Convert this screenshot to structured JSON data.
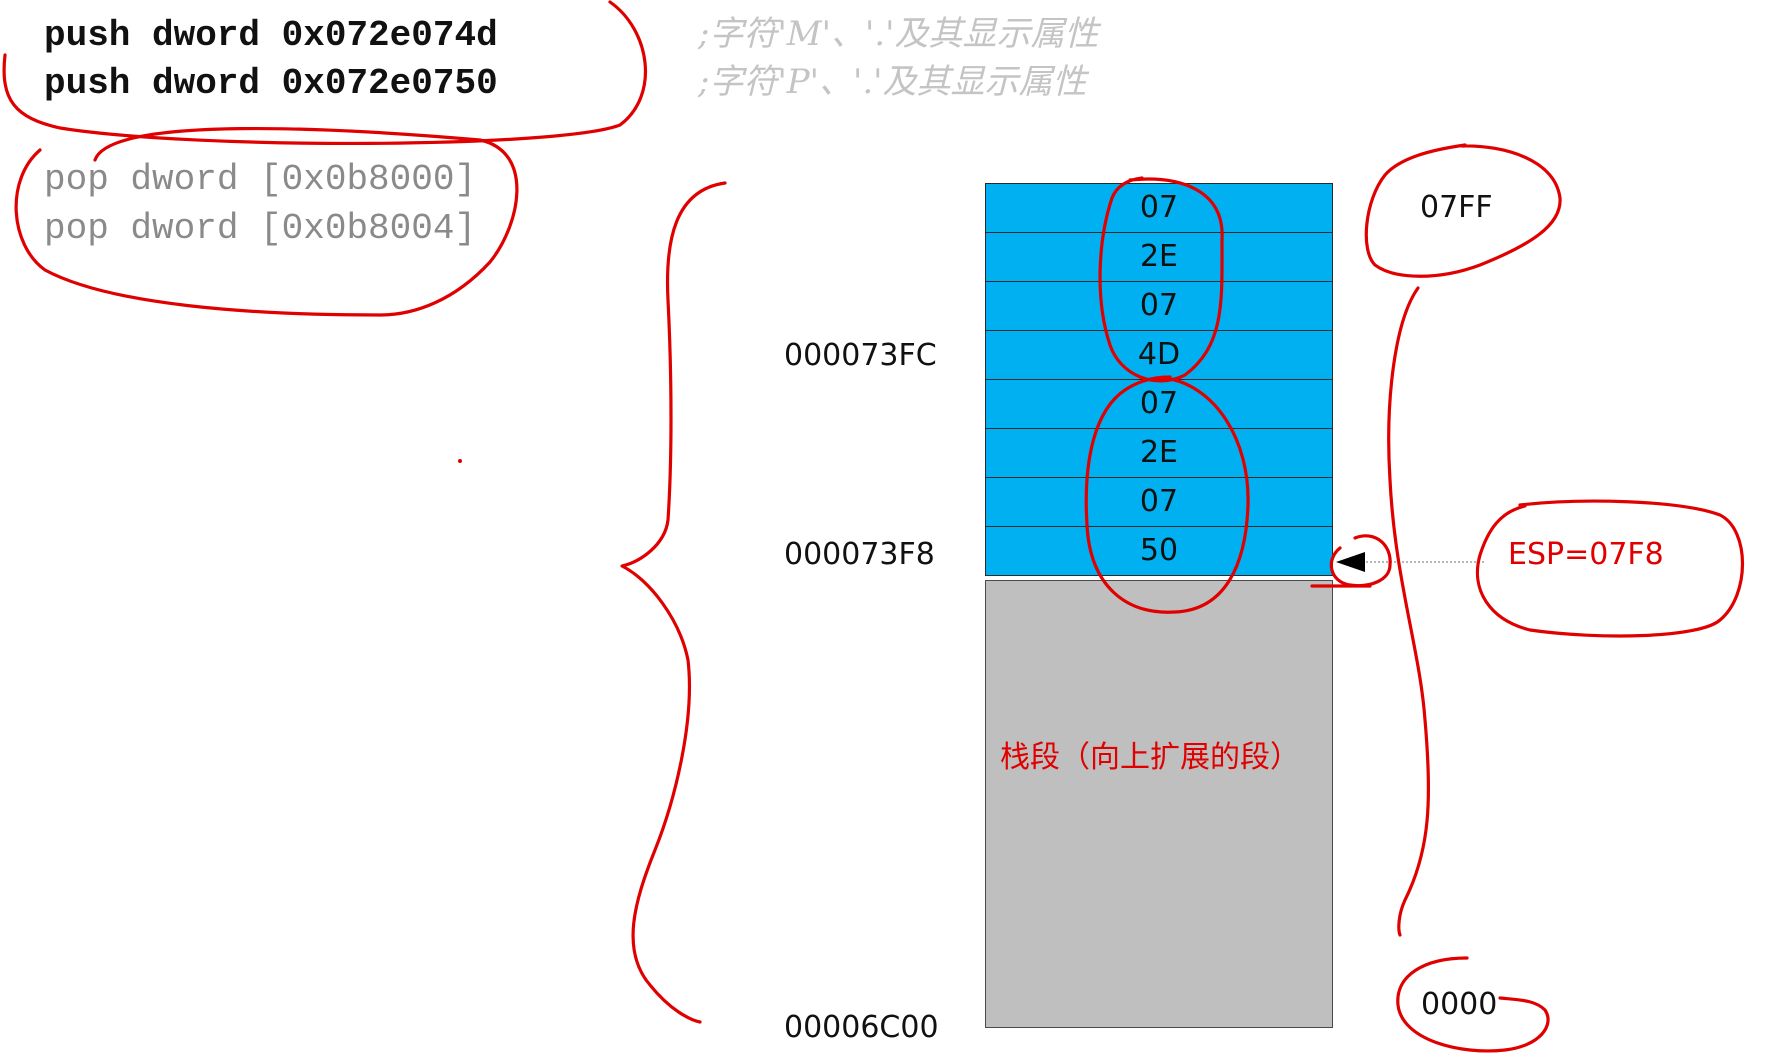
{
  "code": {
    "push_lines": [
      "push dword 0x072e074d",
      "push dword 0x072e0750"
    ],
    "comments": [
      ";字符'M'、'.'及其显示属性",
      ";字符'P'、'.'及其显示属性"
    ],
    "pop_lines": [
      "pop dword [0x0b8000]",
      "pop dword [0x0b8004]"
    ]
  },
  "stack": {
    "bytes": [
      "07",
      "2E",
      "07",
      "4D",
      "07",
      "2E",
      "07",
      "50"
    ],
    "fill_color": "#00b0f0",
    "segment_color": "#bfbfbf",
    "segment_label": "栈段（向上扩展的段）"
  },
  "addresses": {
    "upper": "000073FC",
    "lower": "000073F8",
    "base": "00006C00"
  },
  "offsets": {
    "top": "07FF",
    "bottom": "0000"
  },
  "esp_label": "ESP=07F8",
  "annotation_color": "#e00000"
}
